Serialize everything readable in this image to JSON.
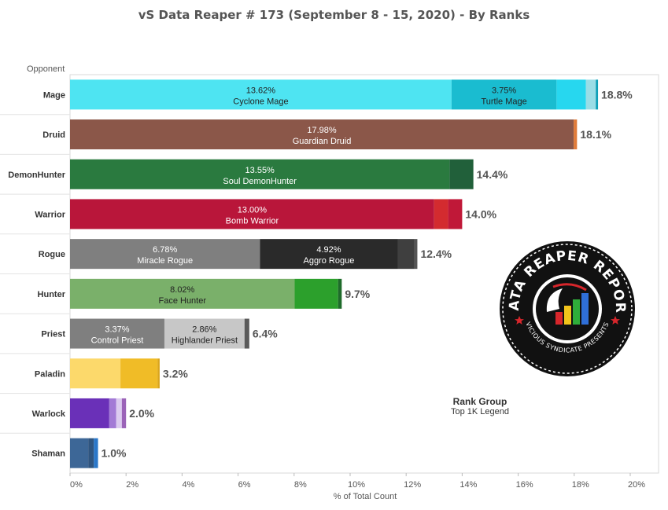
{
  "title": "vS Data Reaper #  173 (September 8 - 15, 2020) - By Ranks",
  "row_header": "Opponent",
  "rank_group": {
    "title": "Rank Group",
    "value": "Top 1K Legend"
  },
  "logo": {
    "top_text": "DATA REAPER REPORT",
    "bottom_text": "VICIOUS SYNDICATE PRESENTS"
  },
  "chart_data": {
    "type": "bar",
    "orientation": "horizontal",
    "stacked": true,
    "xlabel": "% of Total Count",
    "xlim": [
      0,
      20
    ],
    "x_ticks": [
      "0%",
      "2%",
      "4%",
      "6%",
      "8%",
      "10%",
      "12%",
      "14%",
      "16%",
      "18%",
      "20%"
    ],
    "rows": [
      {
        "class": "Mage",
        "total_label": "18.8%",
        "segments": [
          {
            "name": "Cyclone Mage",
            "value": 13.62,
            "label": "13.62%",
            "color": "#4ee4f2",
            "text_color": "#222222"
          },
          {
            "name": "Turtle Mage",
            "value": 3.75,
            "label": "3.75%",
            "color": "#1abcd0",
            "text_color": "#222222"
          },
          {
            "name": "",
            "value": 1.05,
            "color": "#27d7ef"
          },
          {
            "name": "",
            "value": 0.35,
            "color": "#9adde6"
          },
          {
            "name": "",
            "value": 0.08,
            "color": "#0fa0b8"
          }
        ]
      },
      {
        "class": "Druid",
        "total_label": "18.1%",
        "segments": [
          {
            "name": "Guardian Druid",
            "value": 17.98,
            "label": "17.98%",
            "color": "#8b5749",
            "text_color": "#ffffff"
          },
          {
            "name": "",
            "value": 0.12,
            "color": "#e07b39"
          }
        ]
      },
      {
        "class": "DemonHunter",
        "total_label": "14.4%",
        "segments": [
          {
            "name": "Soul DemonHunter",
            "value": 13.55,
            "label": "13.55%",
            "color": "#2a7a3f",
            "text_color": "#ffffff"
          },
          {
            "name": "",
            "value": 0.85,
            "color": "#21603a"
          }
        ]
      },
      {
        "class": "Warrior",
        "total_label": "14.0%",
        "segments": [
          {
            "name": "Bomb Warrior",
            "value": 13.0,
            "label": "13.00%",
            "color": "#b9163a",
            "text_color": "#ffffff"
          },
          {
            "name": "",
            "value": 0.5,
            "color": "#d32b2f"
          },
          {
            "name": "",
            "value": 0.5,
            "color": "#c01838"
          }
        ]
      },
      {
        "class": "Rogue",
        "total_label": "12.4%",
        "segments": [
          {
            "name": "Miracle Rogue",
            "value": 6.78,
            "label": "6.78%",
            "color": "#7f7f7f",
            "text_color": "#ffffff"
          },
          {
            "name": "Aggro Rogue",
            "value": 4.92,
            "label": "4.92%",
            "color": "#2a2a2a",
            "text_color": "#ffffff"
          },
          {
            "name": "",
            "value": 0.6,
            "color": "#3f3f3f"
          },
          {
            "name": "",
            "value": 0.1,
            "color": "#555555"
          }
        ]
      },
      {
        "class": "Hunter",
        "total_label": "9.7%",
        "segments": [
          {
            "name": "Face Hunter",
            "value": 8.02,
            "label": "8.02%",
            "color": "#7ab06a",
            "text_color": "#222222"
          },
          {
            "name": "",
            "value": 1.55,
            "color": "#2ca02c"
          },
          {
            "name": "",
            "value": 0.13,
            "color": "#1e6b2a"
          }
        ]
      },
      {
        "class": "Priest",
        "total_label": "6.4%",
        "segments": [
          {
            "name": "Control Priest",
            "value": 3.37,
            "label": "3.37%",
            "color": "#7f7f7f",
            "text_color": "#ffffff"
          },
          {
            "name": "Highlander Priest",
            "value": 2.86,
            "label": "2.86%",
            "color": "#c7c7c7",
            "text_color": "#222222"
          },
          {
            "name": "",
            "value": 0.17,
            "color": "#5a5a5a"
          }
        ]
      },
      {
        "class": "Paladin",
        "total_label": "3.2%",
        "segments": [
          {
            "name": "",
            "value": 1.8,
            "color": "#fcd96b"
          },
          {
            "name": "",
            "value": 1.33,
            "color": "#f0bc27"
          },
          {
            "name": "",
            "value": 0.07,
            "color": "#d9a51c"
          }
        ]
      },
      {
        "class": "Warlock",
        "total_label": "2.0%",
        "segments": [
          {
            "name": "",
            "value": 1.4,
            "color": "#6a30b8"
          },
          {
            "name": "",
            "value": 0.25,
            "color": "#a37ad6"
          },
          {
            "name": "",
            "value": 0.2,
            "color": "#dccbf0"
          },
          {
            "name": "",
            "value": 0.15,
            "color": "#9b63b8"
          }
        ]
      },
      {
        "class": "Shaman",
        "total_label": "1.0%",
        "segments": [
          {
            "name": "",
            "value": 0.65,
            "color": "#3d6797"
          },
          {
            "name": "",
            "value": 0.2,
            "color": "#2f5580"
          },
          {
            "name": "",
            "value": 0.15,
            "color": "#2a77c9"
          }
        ]
      }
    ]
  }
}
